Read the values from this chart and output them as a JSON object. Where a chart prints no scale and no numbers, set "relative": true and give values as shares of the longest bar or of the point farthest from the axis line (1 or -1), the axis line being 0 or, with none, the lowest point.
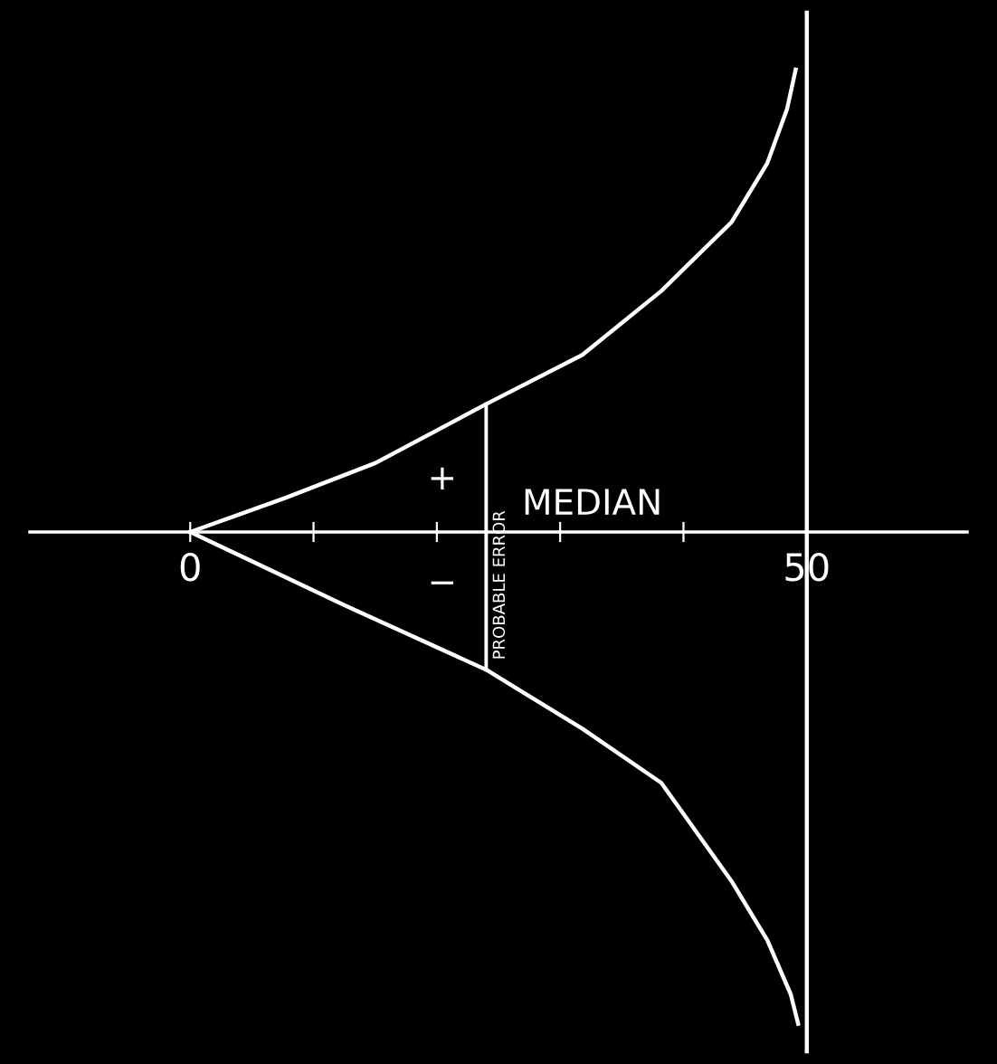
{
  "chart_data": {
    "type": "line",
    "relative": true,
    "series": [
      {
        "color": "#ffffff",
        "x": [
          0,
          7.8,
          15,
          24,
          31.8,
          38.2,
          43.9,
          46.8,
          48.4,
          49.1
        ],
        "values": [
          0,
          0.07,
          0.14,
          0.26,
          0.36,
          0.49,
          0.63,
          0.75,
          0.86,
          0.94
        ]
      },
      {
        "color": "#ffffff",
        "x": [
          0,
          12.6,
          24,
          31.8,
          38.2,
          43.9,
          46.8,
          48.7,
          49.3
        ],
        "values": [
          0,
          -0.15,
          -0.28,
          -0.4,
          -0.51,
          -0.71,
          -0.83,
          -0.94,
          -1
        ]
      }
    ],
    "xlim": [
      -13,
      63
    ],
    "xticks": [
      0,
      {
        "value": 10,
        "label": null
      },
      {
        "value": 20,
        "label": null
      },
      {
        "value": 30,
        "label": null
      },
      {
        "value": 40,
        "label": null
      },
      50
    ],
    "ref_lines": [
      {
        "axis": "x",
        "value": 50,
        "color": "#ffffff"
      },
      {
        "axis": "x",
        "value": 24,
        "label": "PROBABLE ERROR",
        "color": "#ffffff"
      }
    ],
    "annotations": [
      "MEDIAN",
      "+",
      "−"
    ],
    "grid": false,
    "legend": false,
    "marker": "none",
    "line_style": "solid"
  }
}
